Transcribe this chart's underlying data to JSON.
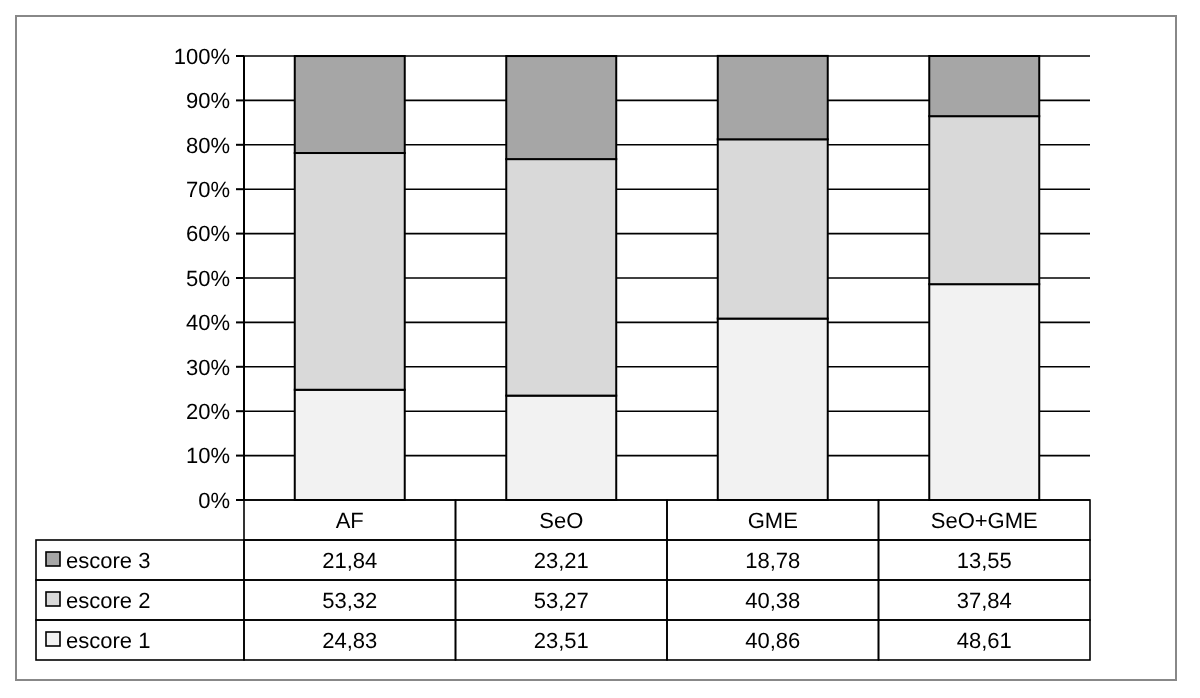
{
  "chart_data": {
    "type": "bar",
    "stacked": true,
    "categories": [
      "AF",
      "SeO",
      "GME",
      "SeO+GME"
    ],
    "ylim": [
      0,
      100
    ],
    "yticks": [
      {
        "value": 0,
        "label": "0%"
      },
      {
        "value": 10,
        "label": "10%"
      },
      {
        "value": 20,
        "label": "20%"
      },
      {
        "value": 30,
        "label": "30%"
      },
      {
        "value": 40,
        "label": "40%"
      },
      {
        "value": 50,
        "label": "50%"
      },
      {
        "value": 60,
        "label": "60%"
      },
      {
        "value": 70,
        "label": "70%"
      },
      {
        "value": 80,
        "label": "80%"
      },
      {
        "value": 90,
        "label": "90%"
      },
      {
        "value": 100,
        "label": "100%"
      }
    ],
    "grid": "y",
    "legend": "bottom left",
    "series": [
      {
        "name": "escore 1",
        "color": "#f2f2f2",
        "values": [
          24.83,
          23.51,
          40.86,
          48.61
        ],
        "value_labels": [
          "24,83",
          "23,51",
          "40,86",
          "48,61"
        ]
      },
      {
        "name": "escore 2",
        "color": "#d9d9d9",
        "values": [
          53.32,
          53.27,
          40.38,
          37.84
        ],
        "value_labels": [
          "53,32",
          "53,27",
          "40,38",
          "37,84"
        ]
      },
      {
        "name": "escore 3",
        "color": "#a6a6a6",
        "values": [
          21.84,
          23.21,
          18.78,
          13.55
        ],
        "value_labels": [
          "21,84",
          "23,21",
          "18,78",
          "13,55"
        ]
      }
    ]
  }
}
